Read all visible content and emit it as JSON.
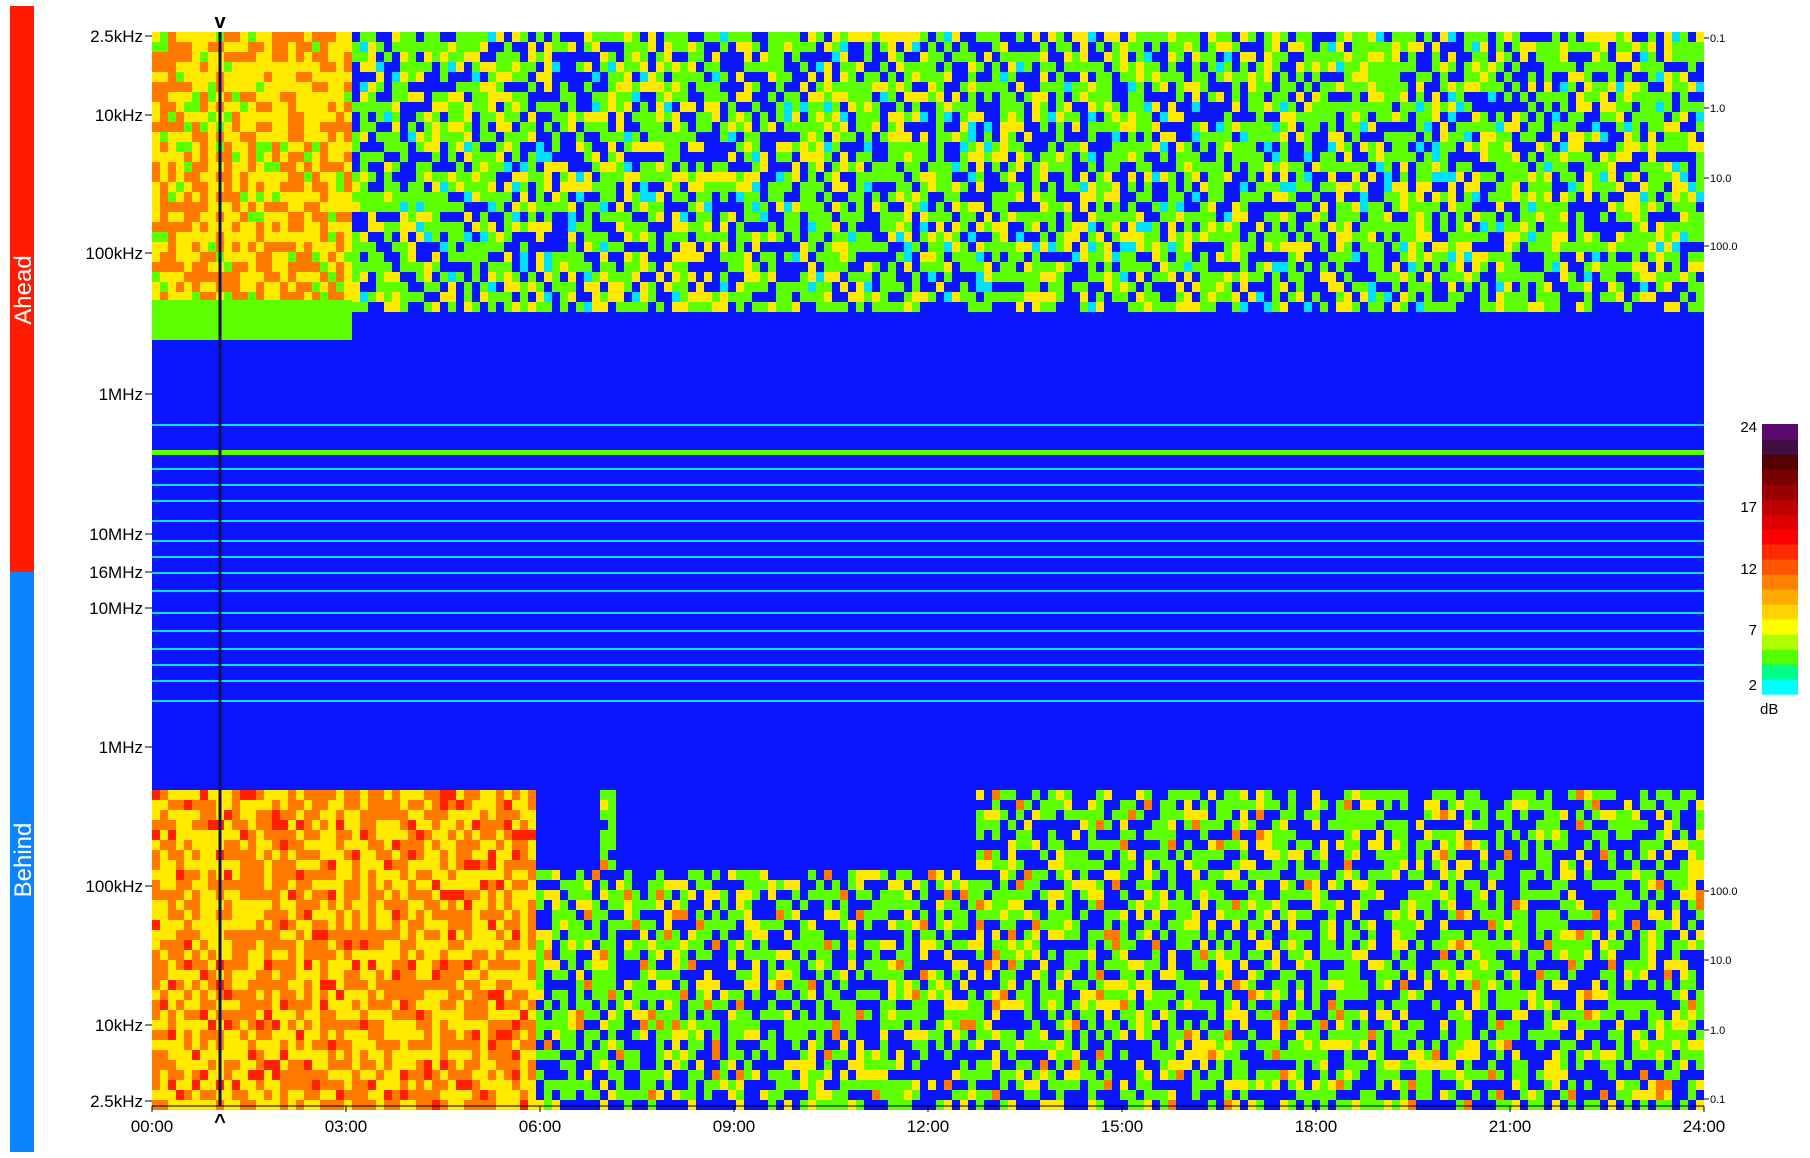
{
  "chart_data": {
    "type": "heatmap",
    "title": "",
    "panels": [
      {
        "name": "Ahead",
        "color": "#ff1a00",
        "y_ticks": [
          "2.5kHz",
          "10kHz",
          "100kHz",
          "1MHz",
          "10MHz",
          "16MHz"
        ],
        "secondary_ticks": [
          "0.1",
          "1.0",
          "10.0",
          "100.0"
        ]
      },
      {
        "name": "Behind",
        "color": "#0a84ff",
        "y_ticks": [
          "10MHz",
          "1MHz",
          "100kHz",
          "10kHz",
          "2.5kHz"
        ],
        "secondary_ticks": [
          "100.0",
          "10.0",
          "1.0",
          "0.1"
        ]
      }
    ],
    "x_ticks": [
      "00:00",
      "03:00",
      "06:00",
      "09:00",
      "12:00",
      "15:00",
      "18:00",
      "21:00",
      "24:00"
    ],
    "xlim": [
      "00:00",
      "24:00"
    ],
    "markers": {
      "time": "01:00",
      "top": "v",
      "bottom": "^"
    },
    "colorbar": {
      "unit": "dB",
      "ticks": [
        "24",
        "17",
        "12",
        "7",
        "2"
      ],
      "range": [
        2,
        24
      ],
      "colors": [
        "#00ffff",
        "#00ff88",
        "#55ff00",
        "#b0ff00",
        "#ffff00",
        "#ffd400",
        "#ffaa00",
        "#ff7f00",
        "#ff5500",
        "#ff2a00",
        "#ff0000",
        "#dd0000",
        "#bb0000",
        "#990000",
        "#770000",
        "#550000",
        "#401040",
        "#5a0a6e"
      ]
    },
    "heatmap_colors": {
      "background": "#0a14ff",
      "low": "#00e0ff",
      "mid": "#5cff00",
      "high": "#ffea00",
      "peak": "#ff7a00",
      "max": "#ff2000"
    }
  }
}
